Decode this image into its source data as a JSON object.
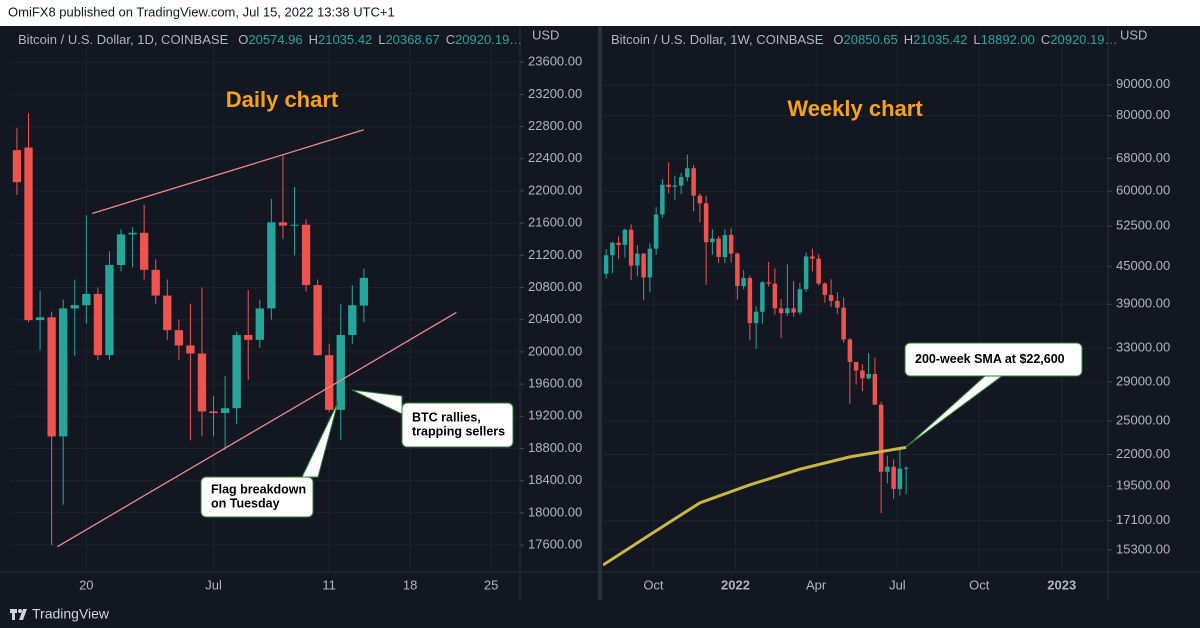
{
  "header": "OmiFX8 published on TradingView.com, Jul 15, 2022 13:38 UTC+1",
  "footer": "TradingView",
  "chart_data": [
    {
      "type": "candlestick",
      "title": "Daily chart",
      "title_color": "#f7a21b",
      "legend": {
        "symbol": "Bitcoin / U.S. Dollar, 1D, COINBASE",
        "fields": [
          [
            "O",
            "20574.96"
          ],
          [
            "H",
            "21035.42"
          ],
          [
            "L",
            "20368.67"
          ],
          [
            "C",
            "20920.19…"
          ]
        ]
      },
      "y_label": "USD",
      "up_color": "#26a69a",
      "down_color": "#ef5350",
      "grid": true,
      "log": false,
      "x": [
        14,
        15,
        16,
        17,
        18,
        19,
        20,
        21,
        22,
        23,
        24,
        25,
        26,
        27,
        28,
        29,
        30,
        31,
        32,
        33,
        34,
        35,
        36,
        37,
        38,
        39,
        40,
        41,
        42,
        43,
        44
      ],
      "open": [
        22507,
        22540,
        20395,
        20430,
        18950,
        20540,
        20580,
        20720,
        19960,
        21080,
        21460,
        21480,
        21020,
        20700,
        20270,
        20080,
        19980,
        19260,
        19240,
        19300,
        20210,
        20150,
        20540,
        21610,
        21570,
        21580,
        20830,
        19960,
        19280,
        20210,
        20574.96
      ],
      "high": [
        22780,
        22966,
        20760,
        20500,
        20650,
        20900,
        21700,
        20800,
        21250,
        21520,
        21550,
        21830,
        21150,
        20900,
        20400,
        20600,
        20800,
        19450,
        19700,
        20250,
        20770,
        20650,
        21900,
        22450,
        22050,
        21650,
        20900,
        20100,
        20600,
        20830,
        21035.42
      ],
      "low": [
        21950,
        20370,
        20020,
        17600,
        18100,
        19950,
        20350,
        19900,
        19900,
        21000,
        21050,
        20900,
        20600,
        20150,
        19900,
        18900,
        18950,
        18950,
        18780,
        19100,
        19650,
        20050,
        20400,
        21400,
        21200,
        20750,
        19950,
        19250,
        18900,
        20100,
        20368.67
      ],
      "close": [
        22109,
        20395,
        20430,
        18950,
        20540,
        20580,
        20720,
        19960,
        21080,
        21460,
        21480,
        21020,
        20700,
        20270,
        20080,
        19980,
        19260,
        19240,
        19300,
        20210,
        20150,
        20540,
        21610,
        21570,
        21580,
        20830,
        19960,
        19280,
        20210,
        20580,
        20920.19
      ],
      "xlim": [
        13.4,
        57.5
      ],
      "ylim": [
        17265,
        24000
      ],
      "xticks": [
        20,
        {
          "value": 31,
          "label": "Jul"
        },
        {
          "value": 41,
          "label": "11"
        },
        {
          "value": 48,
          "label": "18"
        },
        {
          "value": 55,
          "label": "25"
        }
      ],
      "yticks": [
        {
          "value": 17600,
          "label": "17600.00"
        },
        {
          "value": 18000,
          "label": "18000.00"
        },
        {
          "value": 18400,
          "label": "18400.00"
        },
        {
          "value": 18800,
          "label": "18800.00"
        },
        {
          "value": 19200,
          "label": "19200.00"
        },
        {
          "value": 19600,
          "label": "19600.00"
        },
        {
          "value": 20000,
          "label": "20000.00"
        },
        {
          "value": 20400,
          "label": "20400.00"
        },
        {
          "value": 20800,
          "label": "20800.00"
        },
        {
          "value": 21200,
          "label": "21200.00"
        },
        {
          "value": 21600,
          "label": "21600.00"
        },
        {
          "value": 22000,
          "label": "22000.00"
        },
        {
          "value": 22400,
          "label": "22400.00"
        },
        {
          "value": 22800,
          "label": "22800.00"
        },
        {
          "value": 23200,
          "label": "23200.00"
        },
        {
          "value": 23600,
          "label": "23600.00"
        }
      ],
      "trendline_color": "#f08a8a",
      "trendlines": [
        [
          [
            20.5,
            21720
          ],
          [
            44,
            22760
          ]
        ],
        [
          [
            17.5,
            17580
          ],
          [
            52,
            20490
          ]
        ]
      ],
      "callouts": [
        {
          "lines": [
            "BTC rallies,",
            "trapping sellers"
          ]
        },
        {
          "lines": [
            "Flag breakdown",
            "on Tuesday"
          ]
        }
      ]
    },
    {
      "type": "candlestick",
      "title": "Weekly chart",
      "title_color": "#f7a21b",
      "legend": {
        "symbol": "Bitcoin / U.S. Dollar, 1W, COINBASE",
        "fields": [
          [
            "O",
            "20850.65"
          ],
          [
            "H",
            "21035.42"
          ],
          [
            "L",
            "18892.00"
          ],
          [
            "C",
            "20920.19…"
          ]
        ]
      },
      "y_label": "USD",
      "up_color": "#26a69a",
      "down_color": "#ef5350",
      "grid": true,
      "log": true,
      "x": [
        0,
        1,
        2,
        3,
        4,
        5,
        6,
        7,
        8,
        9,
        10,
        11,
        12,
        13,
        14,
        15,
        16,
        17,
        18,
        19,
        20,
        21,
        22,
        23,
        24,
        25,
        26,
        27,
        28,
        29,
        30,
        31,
        32,
        33,
        34,
        35,
        36,
        37,
        38,
        39,
        40,
        41,
        42,
        43,
        44,
        45,
        46,
        47,
        48
      ],
      "open": [
        43800,
        47000,
        49300,
        48900,
        51800,
        45200,
        47300,
        43200,
        48200,
        54900,
        61500,
        61000,
        61300,
        63300,
        65500,
        59000,
        57300,
        49400,
        50100,
        46700,
        50800,
        47300,
        41800,
        43100,
        36300,
        37900,
        42400,
        42200,
        38400,
        37700,
        38400,
        37800,
        41300,
        46800,
        46400,
        42200,
        40400,
        39500,
        38500,
        34100,
        31300,
        30300,
        29400,
        29900,
        26600,
        20600,
        21000,
        19300,
        20850.65
      ],
      "high": [
        48100,
        49500,
        50500,
        52000,
        52900,
        48900,
        47400,
        49200,
        56500,
        62900,
        67000,
        63700,
        64300,
        69000,
        66300,
        59500,
        59000,
        51900,
        50600,
        51900,
        52100,
        47500,
        44400,
        43500,
        38700,
        42600,
        45800,
        44700,
        39800,
        45400,
        42600,
        42300,
        47500,
        48200,
        47200,
        42400,
        42900,
        40800,
        40000,
        34300,
        31300,
        31000,
        32400,
        31800,
        26900,
        21900,
        21600,
        22500,
        21035.42
      ],
      "low": [
        43000,
        43900,
        46300,
        46600,
        42800,
        43400,
        39600,
        40800,
        47100,
        54200,
        59500,
        58000,
        59400,
        62300,
        55600,
        53300,
        42000,
        47100,
        45700,
        45600,
        45700,
        39700,
        41300,
        34000,
        32900,
        36200,
        41700,
        37500,
        34300,
        37300,
        37200,
        37500,
        40900,
        44200,
        41900,
        39200,
        38600,
        37600,
        33700,
        26700,
        28700,
        28000,
        29300,
        26600,
        17600,
        19700,
        18600,
        18800,
        18892
      ],
      "close": [
        47000,
        49300,
        48900,
        51800,
        45200,
        47300,
        43200,
        48200,
        54900,
        61500,
        61000,
        61300,
        63300,
        65500,
        59000,
        57300,
        49400,
        50100,
        46700,
        50800,
        47300,
        41800,
        43100,
        36300,
        37900,
        42400,
        42200,
        38400,
        37700,
        38400,
        37800,
        41300,
        46800,
        46400,
        42200,
        40400,
        39500,
        38500,
        34100,
        31300,
        30300,
        29400,
        29900,
        26600,
        20600,
        21000,
        19300,
        20850,
        20920.19
      ],
      "xlim": [
        -0.5,
        80.3
      ],
      "ylim": [
        14060,
        110900
      ],
      "xticks": [
        {
          "value": 7.57,
          "label": "Oct"
        },
        {
          "value": 20.7,
          "label": "2022"
        },
        {
          "value": 33.6,
          "label": "Apr"
        },
        {
          "value": 46.6,
          "label": "Jul"
        },
        {
          "value": 59.7,
          "label": "Oct"
        },
        {
          "value": 72.9,
          "label": "2023"
        }
      ],
      "yticks": [
        {
          "value": 15300,
          "label": "15300.00"
        },
        {
          "value": 17100,
          "label": "17100.00"
        },
        {
          "value": 19500,
          "label": "19500.00"
        },
        {
          "value": 22000,
          "label": "22000.00"
        },
        {
          "value": 25000,
          "label": "25000.00"
        },
        {
          "value": 29000,
          "label": "29000.00"
        },
        {
          "value": 33000,
          "label": "33000.00"
        },
        {
          "value": 39000,
          "label": "39000.00"
        },
        {
          "value": 45000,
          "label": "45000.00"
        },
        {
          "value": 52500,
          "label": "52500.00"
        },
        {
          "value": 60000,
          "label": "60000.00"
        },
        {
          "value": 68000,
          "label": "68000.00"
        },
        {
          "value": 80000,
          "label": "80000.00"
        },
        {
          "value": 90000,
          "label": "90000.00"
        }
      ],
      "sma": {
        "color": "#c9b643",
        "x": [
          -0.5,
          7,
          15,
          23,
          31,
          39,
          48
        ],
        "values": [
          14440,
          16200,
          18300,
          19600,
          20800,
          21800,
          22600
        ]
      },
      "callouts": [
        {
          "lines": [
            "200-week SMA at $22,600"
          ]
        }
      ]
    }
  ]
}
